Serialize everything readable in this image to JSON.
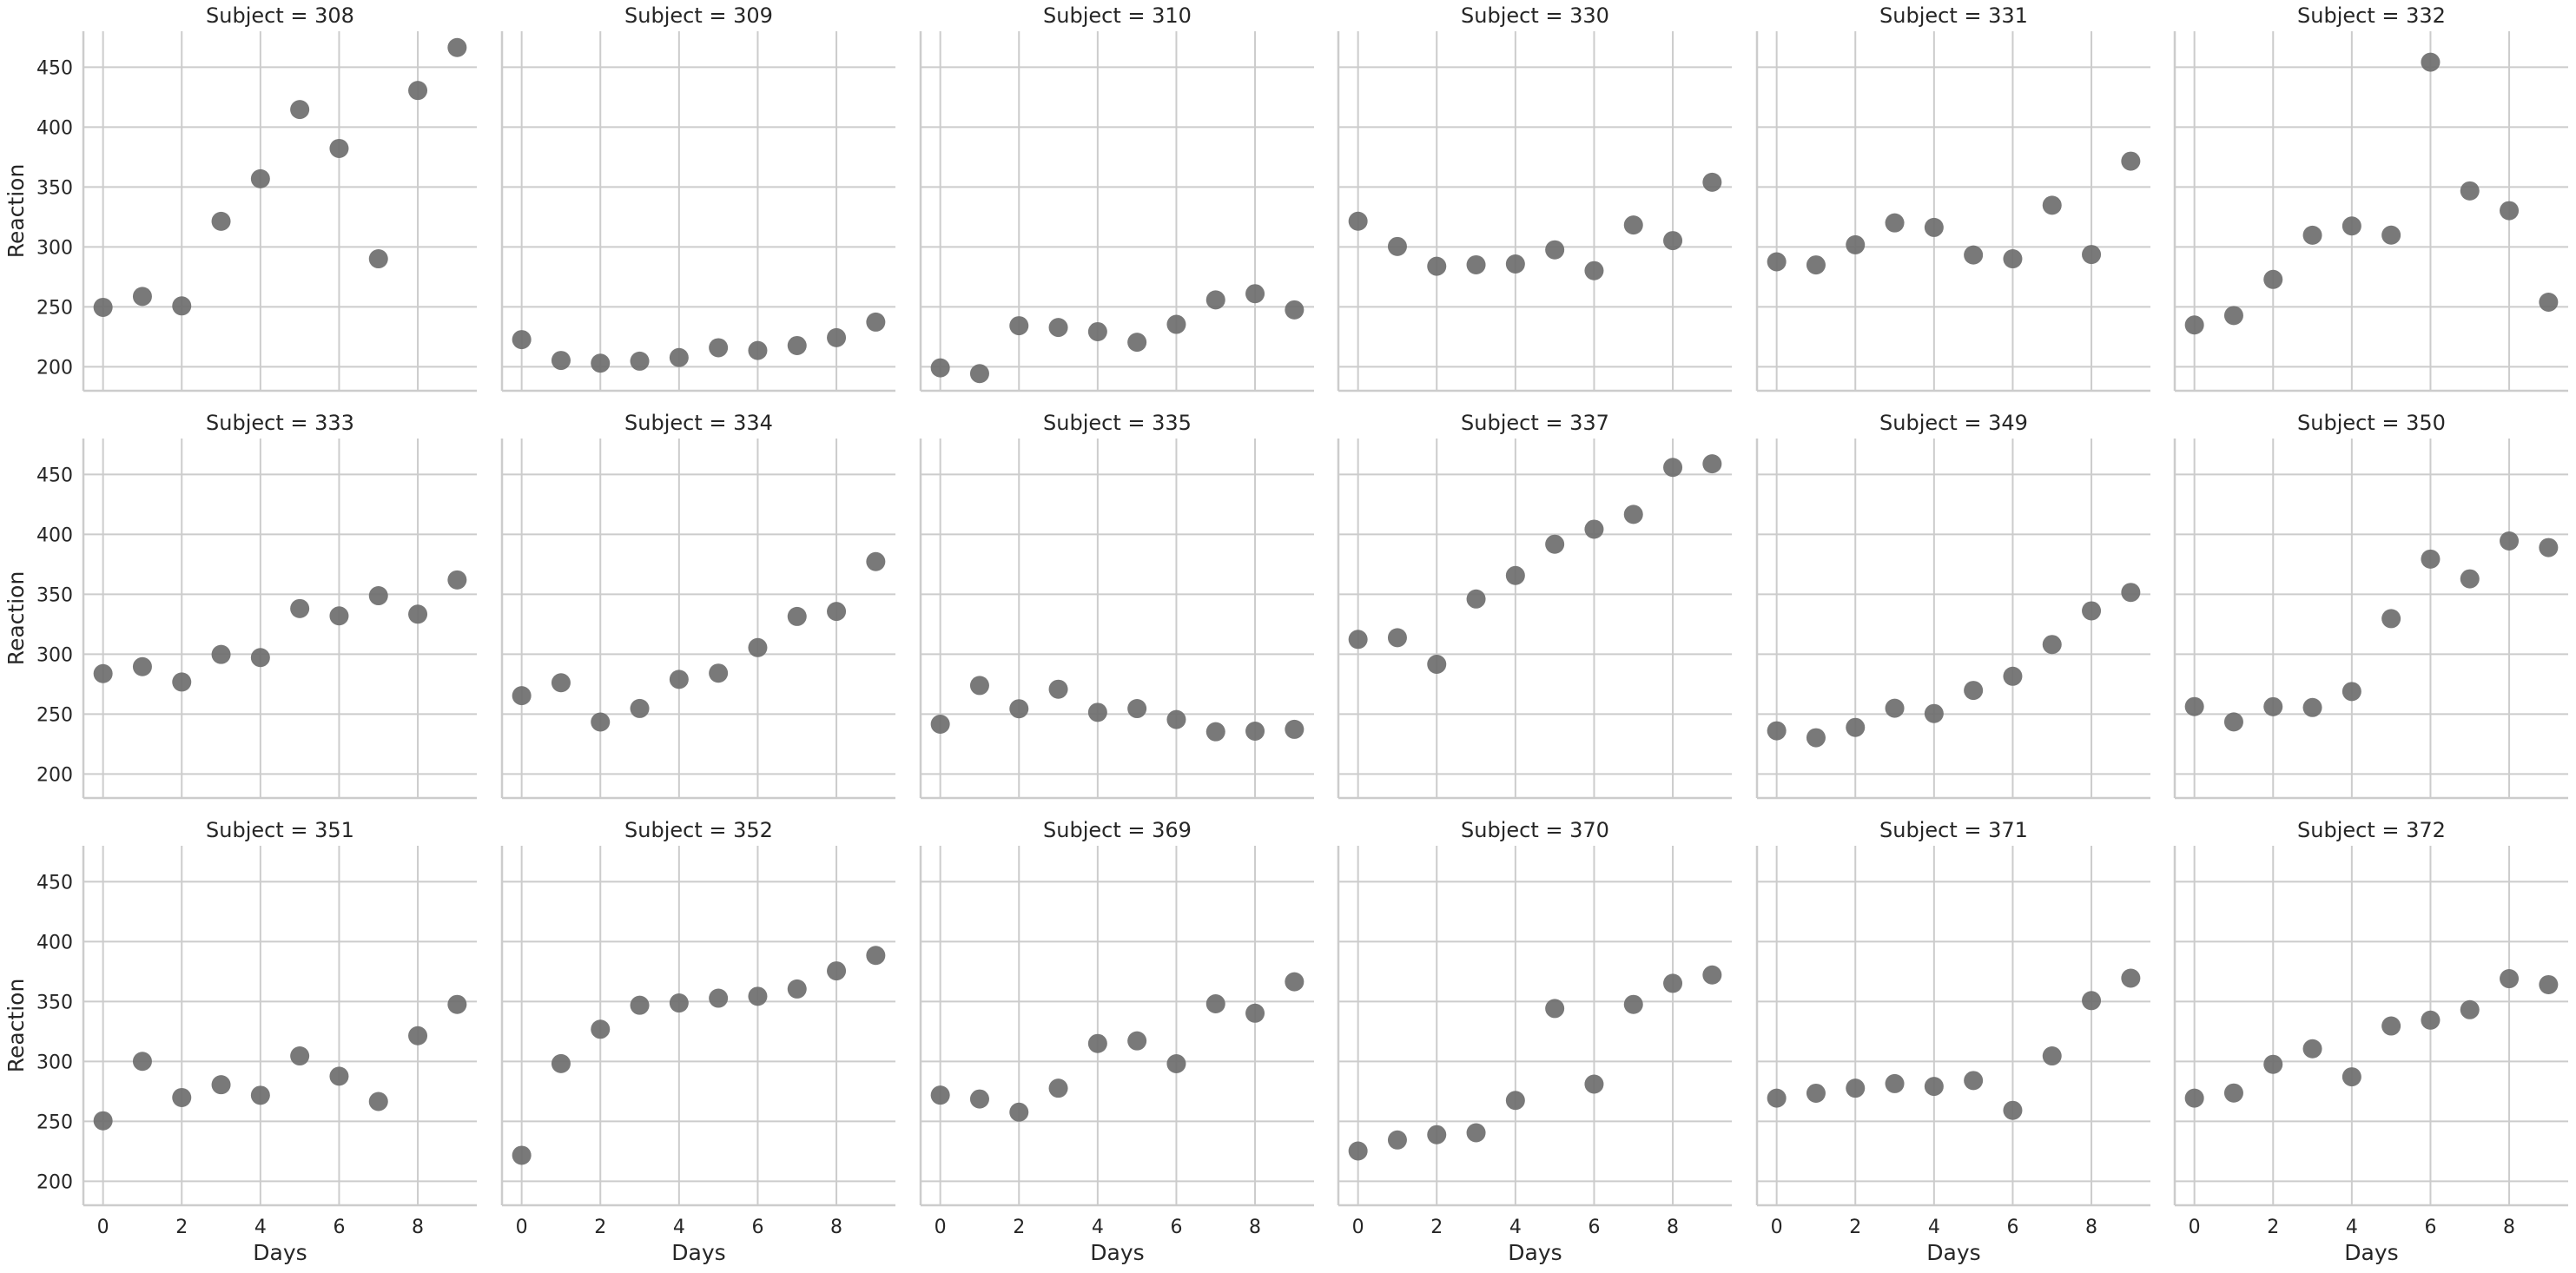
{
  "chart_data": {
    "type": "scatter",
    "layout": {
      "rows": 3,
      "cols": 6
    },
    "xlabel": "Days",
    "ylabel": "Reaction",
    "xlim": [
      -0.5,
      9.5
    ],
    "ylim": [
      180,
      480
    ],
    "xticks": [
      0,
      2,
      4,
      6,
      8
    ],
    "yticks": [
      200,
      250,
      300,
      350,
      400,
      450
    ],
    "grid": true,
    "marker_color": "#6e6e6e",
    "x": [
      0,
      1,
      2,
      3,
      4,
      5,
      6,
      7,
      8,
      9
    ],
    "panels": [
      {
        "title": "Subject = 308",
        "y": [
          249.6,
          258.7,
          250.8,
          321.4,
          356.9,
          414.7,
          382.2,
          290.1,
          430.6,
          466.4
        ]
      },
      {
        "title": "Subject = 309",
        "y": [
          222.7,
          205.3,
          203.0,
          204.7,
          207.7,
          215.9,
          213.6,
          217.7,
          224.3,
          237.3
        ]
      },
      {
        "title": "Subject = 310",
        "y": [
          199.1,
          194.3,
          234.3,
          232.8,
          229.3,
          220.5,
          235.4,
          255.8,
          261.0,
          247.5
        ]
      },
      {
        "title": "Subject = 330",
        "y": [
          321.5,
          300.4,
          283.9,
          285.1,
          285.8,
          297.6,
          280.2,
          318.3,
          305.3,
          354.0
        ]
      },
      {
        "title": "Subject = 331",
        "y": [
          287.6,
          285.0,
          301.8,
          320.1,
          316.3,
          293.3,
          290.1,
          334.8,
          293.7,
          371.6
        ]
      },
      {
        "title": "Subject = 332",
        "y": [
          234.9,
          242.8,
          272.9,
          309.8,
          317.5,
          309.9,
          454.2,
          346.8,
          330.3,
          253.9
        ]
      },
      {
        "title": "Subject = 333",
        "y": [
          283.8,
          289.6,
          276.8,
          299.8,
          297.2,
          338.1,
          332.0,
          348.8,
          333.4,
          362.0
        ]
      },
      {
        "title": "Subject = 334",
        "y": [
          265.4,
          276.2,
          243.4,
          254.7,
          279.0,
          284.2,
          305.5,
          331.5,
          335.7,
          377.3
        ]
      },
      {
        "title": "Subject = 335",
        "y": [
          241.6,
          273.9,
          254.5,
          270.8,
          251.5,
          254.6,
          245.5,
          235.3,
          235.8,
          237.3
        ]
      },
      {
        "title": "Subject = 337",
        "y": [
          312.4,
          313.8,
          291.6,
          346.1,
          365.7,
          391.8,
          404.3,
          416.7,
          455.9,
          458.9
        ]
      },
      {
        "title": "Subject = 349",
        "y": [
          236.1,
          230.3,
          238.9,
          254.9,
          250.5,
          269.8,
          281.6,
          308.1,
          336.2,
          351.6
        ]
      },
      {
        "title": "Subject = 350",
        "y": [
          256.3,
          243.5,
          256.2,
          255.5,
          268.9,
          329.7,
          379.4,
          362.9,
          394.5,
          389.0
        ]
      },
      {
        "title": "Subject = 351",
        "y": [
          250.5,
          300.1,
          269.9,
          280.6,
          271.8,
          304.6,
          287.7,
          266.6,
          321.5,
          347.6
        ]
      },
      {
        "title": "Subject = 352",
        "y": [
          221.7,
          298.2,
          326.9,
          346.9,
          348.8,
          352.8,
          354.4,
          360.5,
          375.6,
          388.5
        ]
      },
      {
        "title": "Subject = 369",
        "y": [
          271.9,
          268.7,
          257.7,
          277.7,
          315.0,
          317.2,
          298.1,
          348.1,
          340.3,
          366.5
        ]
      },
      {
        "title": "Subject = 370",
        "y": [
          225.3,
          234.5,
          238.9,
          240.5,
          267.5,
          344.2,
          281.1,
          347.6,
          365.2,
          372.2
        ]
      },
      {
        "title": "Subject = 371",
        "y": [
          269.4,
          273.5,
          277.7,
          281.5,
          279.2,
          284.1,
          259.2,
          304.6,
          350.8,
          369.5
        ]
      },
      {
        "title": "Subject = 372",
        "y": [
          269.4,
          273.7,
          297.6,
          310.6,
          287.2,
          329.6,
          334.5,
          343.2,
          369.1,
          364.1
        ]
      }
    ]
  }
}
